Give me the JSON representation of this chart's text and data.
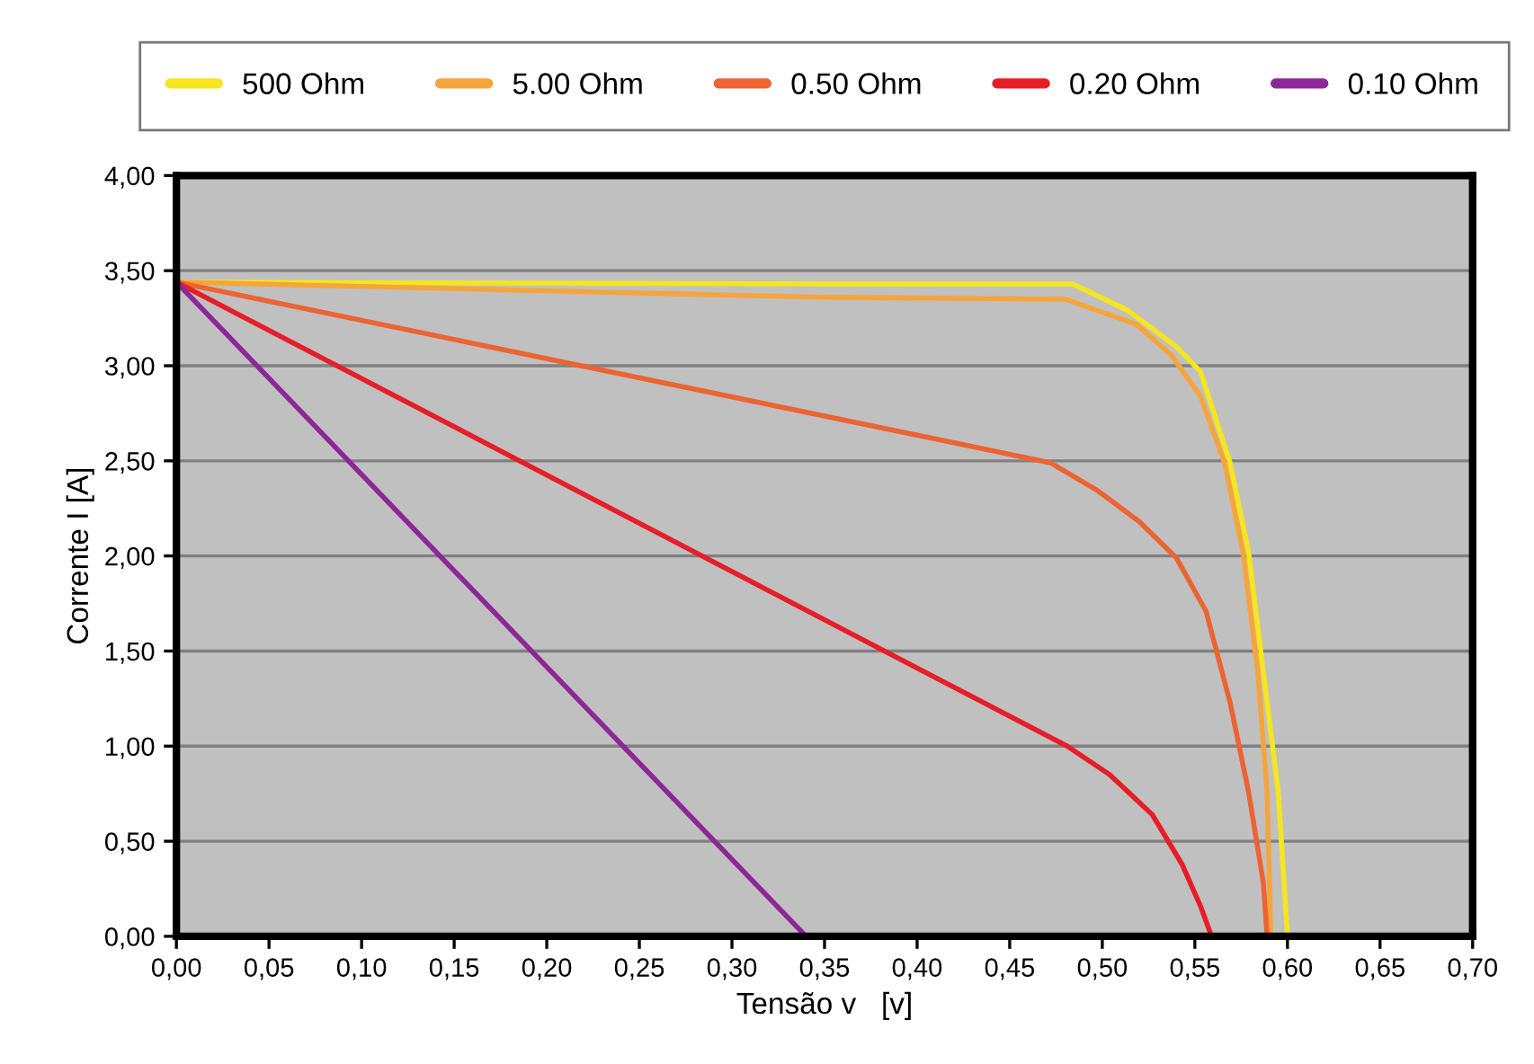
{
  "chart_data": {
    "type": "line",
    "xlabel": "Tensão v   [v]",
    "ylabel": "Corrente I [A]",
    "xlim": [
      0,
      0.7
    ],
    "ylim": [
      0,
      4
    ],
    "xticks": [
      {
        "value": 0,
        "label": "0,00"
      },
      {
        "value": 0.05,
        "label": "0,05"
      },
      {
        "value": 0.1,
        "label": "0,10"
      },
      {
        "value": 0.15,
        "label": "0,15"
      },
      {
        "value": 0.2,
        "label": "0,20"
      },
      {
        "value": 0.25,
        "label": "0,25"
      },
      {
        "value": 0.3,
        "label": "0,30"
      },
      {
        "value": 0.35,
        "label": "0,35"
      },
      {
        "value": 0.4,
        "label": "0,40"
      },
      {
        "value": 0.45,
        "label": "0,45"
      },
      {
        "value": 0.5,
        "label": "0,50"
      },
      {
        "value": 0.55,
        "label": "0,55"
      },
      {
        "value": 0.6,
        "label": "0,60"
      },
      {
        "value": 0.65,
        "label": "0,65"
      },
      {
        "value": 0.7,
        "label": "0,70"
      }
    ],
    "yticks": [
      {
        "value": 0,
        "label": "0,00"
      },
      {
        "value": 0.5,
        "label": "0,50"
      },
      {
        "value": 1,
        "label": "1,00"
      },
      {
        "value": 1.5,
        "label": "1,50"
      },
      {
        "value": 2,
        "label": "2,00"
      },
      {
        "value": 2.5,
        "label": "2,50"
      },
      {
        "value": 3,
        "label": "3,00"
      },
      {
        "value": 3.5,
        "label": "3,50"
      },
      {
        "value": 4,
        "label": "4,00"
      }
    ],
    "grid": "y",
    "legend": "top",
    "marker": "none",
    "line_style": "solid",
    "series": [
      {
        "name": "500 Ohm",
        "color": "#f5e61e",
        "x": [
          0,
          0.35,
          0.484,
          0.514,
          0.54,
          0.553,
          0.569,
          0.579,
          0.587,
          0.595,
          0.6
        ],
        "values": [
          3.44,
          3.43,
          3.43,
          3.29,
          3.1,
          2.97,
          2.49,
          2.02,
          1.39,
          0.76,
          0
        ]
      },
      {
        "name": "5.00 Ohm",
        "color": "#f5a53c",
        "x": [
          0,
          0.35,
          0.48,
          0.518,
          0.537,
          0.553,
          0.566,
          0.576,
          0.584,
          0.589,
          0.591
        ],
        "values": [
          3.44,
          3.36,
          3.35,
          3.22,
          3.06,
          2.84,
          2.49,
          2.02,
          1.39,
          0.76,
          0
        ]
      },
      {
        "name": "0.50 Ohm",
        "color": "#eb6432",
        "x": [
          0,
          0.472,
          0.498,
          0.52,
          0.54,
          0.556,
          0.569,
          0.579,
          0.587,
          0.589
        ],
        "values": [
          3.44,
          2.49,
          2.34,
          2.18,
          1.99,
          1.71,
          1.23,
          0.76,
          0.28,
          0
        ]
      },
      {
        "name": "0.20 Ohm",
        "color": "#e61e28",
        "x": [
          0,
          0.481,
          0.504,
          0.527,
          0.543,
          0.553,
          0.559
        ],
        "values": [
          3.44,
          1.0,
          0.85,
          0.64,
          0.38,
          0.16,
          0
        ]
      },
      {
        "name": "0.10 Ohm",
        "color": "#8c2896",
        "x": [
          0,
          0.34
        ],
        "values": [
          3.44,
          0
        ]
      }
    ]
  }
}
